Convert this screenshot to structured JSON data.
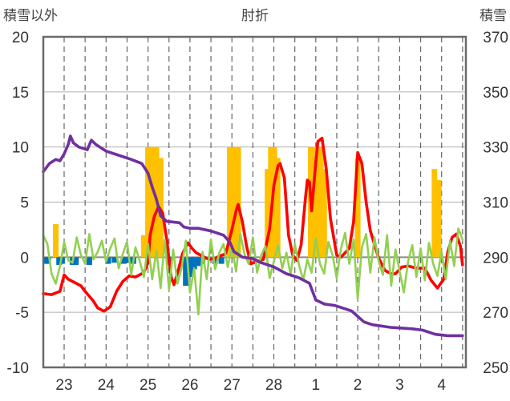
{
  "chart_data": {
    "type": "line",
    "title": "肘折",
    "ylabel_left": "積雪以外",
    "ylabel_right": "積雪",
    "categories": [
      "23",
      "24",
      "25",
      "26",
      "27",
      "28",
      "1",
      "2",
      "3",
      "4"
    ],
    "y_left": {
      "lim": [
        -10,
        20
      ],
      "ticks": [
        "20",
        "15",
        "10",
        "5",
        "0",
        "-5",
        "-10"
      ]
    },
    "y_right": {
      "lim": [
        250,
        370
      ],
      "ticks": [
        "370",
        "350",
        "330",
        "310",
        "290",
        "270",
        "250"
      ]
    },
    "grid": true,
    "series": [
      {
        "axis": "left",
        "kind": "line",
        "color": "#ff0000",
        "points": [
          [
            -0.5,
            -3.3
          ],
          [
            -0.3,
            -3.4
          ],
          [
            -0.1,
            -3.1
          ],
          [
            0.0,
            -1.6
          ],
          [
            0.1,
            -2.0
          ],
          [
            0.2,
            -2.2
          ],
          [
            0.4,
            -2.6
          ],
          [
            0.5,
            -3.1
          ],
          [
            0.7,
            -4.0
          ],
          [
            0.8,
            -4.6
          ],
          [
            0.95,
            -4.9
          ],
          [
            1.1,
            -4.5
          ],
          [
            1.25,
            -3.1
          ],
          [
            1.4,
            -2.2
          ],
          [
            1.55,
            -1.7
          ],
          [
            1.7,
            -1.8
          ],
          [
            1.9,
            -1.4
          ],
          [
            2.0,
            -0.5
          ],
          [
            2.05,
            2.0
          ],
          [
            2.15,
            3.7
          ],
          [
            2.25,
            4.6
          ],
          [
            2.35,
            4.0
          ],
          [
            2.45,
            1.5
          ],
          [
            2.55,
            -1.8
          ],
          [
            2.62,
            -2.5
          ],
          [
            2.72,
            -1.2
          ],
          [
            2.82,
            0.3
          ],
          [
            2.95,
            1.3
          ],
          [
            3.05,
            0.8
          ],
          [
            3.15,
            0.4
          ],
          [
            3.3,
            0.1
          ],
          [
            3.45,
            -0.2
          ],
          [
            3.6,
            -0.1
          ],
          [
            3.7,
            0.1
          ],
          [
            3.85,
            0.3
          ],
          [
            4.0,
            2.5
          ],
          [
            4.1,
            4.2
          ],
          [
            4.15,
            4.8
          ],
          [
            4.25,
            3.2
          ],
          [
            4.35,
            1.0
          ],
          [
            4.45,
            -0.6
          ],
          [
            4.6,
            -0.4
          ],
          [
            4.75,
            -0.2
          ],
          [
            4.9,
            2.6
          ],
          [
            5.0,
            6.5
          ],
          [
            5.1,
            8.3
          ],
          [
            5.15,
            8.5
          ],
          [
            5.25,
            7.2
          ],
          [
            5.35,
            2.0
          ],
          [
            5.45,
            0.2
          ],
          [
            5.55,
            -0.3
          ],
          [
            5.65,
            1.1
          ],
          [
            5.75,
            5.2
          ],
          [
            5.8,
            7.0
          ],
          [
            5.85,
            6.8
          ],
          [
            5.9,
            4.2
          ],
          [
            6.0,
            8.6
          ],
          [
            6.05,
            10.5
          ],
          [
            6.15,
            10.8
          ],
          [
            6.25,
            8.0
          ],
          [
            6.35,
            3.5
          ],
          [
            6.5,
            0.2
          ],
          [
            6.6,
            0.0
          ],
          [
            6.8,
            0.8
          ],
          [
            6.9,
            3.2
          ],
          [
            7.0,
            9.5
          ],
          [
            7.1,
            8.5
          ],
          [
            7.2,
            5.0
          ],
          [
            7.3,
            2.4
          ],
          [
            7.5,
            -0.1
          ],
          [
            7.65,
            -1.2
          ],
          [
            7.8,
            -1.5
          ],
          [
            7.9,
            -1.5
          ],
          [
            8.05,
            -0.9
          ],
          [
            8.2,
            -0.8
          ],
          [
            8.4,
            -1.0
          ],
          [
            8.6,
            -1.0
          ],
          [
            8.75,
            -2.1
          ],
          [
            8.9,
            -2.8
          ],
          [
            9.05,
            -2.0
          ],
          [
            9.15,
            0.5
          ],
          [
            9.25,
            1.8
          ],
          [
            9.35,
            2.1
          ],
          [
            9.45,
            1.0
          ],
          [
            9.5,
            -0.7
          ]
        ]
      },
      {
        "axis": "left",
        "kind": "line",
        "color": "#92d050",
        "points": [
          [
            -0.5,
            2.0
          ],
          [
            -0.4,
            1.2
          ],
          [
            -0.3,
            -1.5
          ],
          [
            -0.2,
            -2.4
          ],
          [
            -0.1,
            -0.8
          ],
          [
            0.0,
            1.4
          ],
          [
            0.1,
            -0.3
          ],
          [
            0.2,
            -0.5
          ],
          [
            0.3,
            1.8
          ],
          [
            0.4,
            0.2
          ],
          [
            0.5,
            -0.6
          ],
          [
            0.6,
            2.1
          ],
          [
            0.7,
            -0.2
          ],
          [
            0.8,
            0.5
          ],
          [
            0.9,
            1.5
          ],
          [
            1.0,
            -0.4
          ],
          [
            1.1,
            0.8
          ],
          [
            1.2,
            1.7
          ],
          [
            1.3,
            -1.0
          ],
          [
            1.4,
            0.3
          ],
          [
            1.5,
            1.4
          ],
          [
            1.6,
            -1.6
          ],
          [
            1.7,
            0.9
          ],
          [
            1.8,
            -0.3
          ],
          [
            1.9,
            -1.8
          ],
          [
            2.0,
            1.2
          ],
          [
            2.1,
            -2.0
          ],
          [
            2.2,
            0.6
          ],
          [
            2.3,
            -2.8
          ],
          [
            2.4,
            1.6
          ],
          [
            2.5,
            -3.0
          ],
          [
            2.6,
            0.7
          ],
          [
            2.7,
            -2.4
          ],
          [
            2.8,
            -1.0
          ],
          [
            2.9,
            1.5
          ],
          [
            3.0,
            -3.2
          ],
          [
            3.1,
            -1.0
          ],
          [
            3.2,
            -5.2
          ],
          [
            3.3,
            0.5
          ],
          [
            3.4,
            -2.0
          ],
          [
            3.5,
            1.6
          ],
          [
            3.6,
            -1.1
          ],
          [
            3.7,
            0.4
          ],
          [
            3.8,
            1.2
          ],
          [
            3.9,
            -0.9
          ],
          [
            4.0,
            0.9
          ],
          [
            4.1,
            -1.3
          ],
          [
            4.2,
            2.1
          ],
          [
            4.3,
            0.3
          ],
          [
            4.4,
            -0.6
          ],
          [
            4.5,
            1.8
          ],
          [
            4.6,
            -1.4
          ],
          [
            4.7,
            0.2
          ],
          [
            4.8,
            1.0
          ],
          [
            4.9,
            -1.9
          ],
          [
            5.0,
            -0.4
          ],
          [
            5.1,
            1.1
          ],
          [
            5.2,
            -1.0
          ],
          [
            5.3,
            0.4
          ],
          [
            5.4,
            -1.6
          ],
          [
            5.5,
            1.2
          ],
          [
            5.6,
            -0.7
          ],
          [
            5.7,
            -2.1
          ],
          [
            5.8,
            -0.2
          ],
          [
            5.9,
            -1.4
          ],
          [
            6.0,
            1.7
          ],
          [
            6.1,
            -0.6
          ],
          [
            6.2,
            -1.5
          ],
          [
            6.3,
            1.4
          ],
          [
            6.4,
            0.2
          ],
          [
            6.5,
            -1.9
          ],
          [
            6.6,
            0.8
          ],
          [
            6.7,
            2.2
          ],
          [
            6.8,
            -0.6
          ],
          [
            6.9,
            1.6
          ],
          [
            7.0,
            -3.8
          ],
          [
            7.1,
            0.9
          ],
          [
            7.2,
            2.1
          ],
          [
            7.3,
            -1.4
          ],
          [
            7.4,
            1.8
          ],
          [
            7.5,
            -0.4
          ],
          [
            7.6,
            -1.6
          ],
          [
            7.7,
            2.0
          ],
          [
            7.8,
            -2.6
          ],
          [
            7.9,
            0.7
          ],
          [
            8.0,
            -1.3
          ],
          [
            8.1,
            -3.2
          ],
          [
            8.2,
            -0.4
          ],
          [
            8.3,
            1.1
          ],
          [
            8.4,
            -1.8
          ],
          [
            8.5,
            0.8
          ],
          [
            8.6,
            -2.1
          ],
          [
            8.7,
            1.3
          ],
          [
            8.8,
            -0.6
          ],
          [
            8.9,
            -1.7
          ],
          [
            9.0,
            0.5
          ],
          [
            9.1,
            -2.0
          ],
          [
            9.2,
            1.5
          ],
          [
            9.3,
            -0.8
          ],
          [
            9.4,
            2.6
          ],
          [
            9.5,
            1.6
          ]
        ]
      },
      {
        "axis": "left",
        "kind": "bar",
        "color": "#ffc000",
        "points": [
          [
            -0.2,
            3.0
          ],
          [
            1.9,
            2.0
          ],
          [
            2.0,
            10.0
          ],
          [
            2.1,
            10.0
          ],
          [
            2.2,
            10.0
          ],
          [
            2.3,
            9.0
          ],
          [
            3.95,
            10.0
          ],
          [
            4.05,
            10.0
          ],
          [
            4.15,
            10.0
          ],
          [
            4.85,
            8.0
          ],
          [
            4.93,
            10.0
          ],
          [
            5.01,
            10.0
          ],
          [
            5.09,
            9.0
          ],
          [
            5.88,
            10.0
          ],
          [
            5.96,
            10.0
          ],
          [
            6.04,
            10.0
          ],
          [
            6.12,
            10.0
          ],
          [
            6.2,
            8.0
          ],
          [
            7.0,
            9.0
          ],
          [
            8.83,
            8.0
          ],
          [
            8.93,
            7.0
          ]
        ]
      },
      {
        "axis": "left",
        "kind": "bar",
        "color": "#0070c0",
        "points": [
          [
            -0.45,
            -0.6
          ],
          [
            -0.38,
            -0.6
          ],
          [
            -0.12,
            -0.7
          ],
          [
            -0.05,
            -0.6
          ],
          [
            0.2,
            -0.7
          ],
          [
            0.28,
            -0.7
          ],
          [
            0.6,
            -0.7
          ],
          [
            1.05,
            -0.6
          ],
          [
            1.2,
            -0.5
          ],
          [
            1.42,
            -0.6
          ],
          [
            1.52,
            -0.5
          ],
          [
            1.65,
            -0.6
          ],
          [
            2.5,
            -0.7
          ],
          [
            2.9,
            -2.6
          ],
          [
            3.02,
            -1.8
          ],
          [
            3.1,
            -1.1
          ],
          [
            3.22,
            -0.8
          ],
          [
            3.3,
            -0.6
          ],
          [
            3.6,
            -0.6
          ],
          [
            3.75,
            -0.6
          ]
        ]
      },
      {
        "axis": "right",
        "kind": "line",
        "color": "#7030a0",
        "points": [
          [
            -0.5,
            321.0
          ],
          [
            -0.35,
            324.0
          ],
          [
            -0.2,
            325.5
          ],
          [
            -0.1,
            325.0
          ],
          [
            0.0,
            327.5
          ],
          [
            0.1,
            331.0
          ],
          [
            0.15,
            334.0
          ],
          [
            0.22,
            331.5
          ],
          [
            0.35,
            330.0
          ],
          [
            0.55,
            329.0
          ],
          [
            0.65,
            332.5
          ],
          [
            0.75,
            331.0
          ],
          [
            1.0,
            328.5
          ],
          [
            1.3,
            327.0
          ],
          [
            1.6,
            325.5
          ],
          [
            1.85,
            324.0
          ],
          [
            2.0,
            320.5
          ],
          [
            2.1,
            315.5
          ],
          [
            2.2,
            311.0
          ],
          [
            2.3,
            305.0
          ],
          [
            2.45,
            303.0
          ],
          [
            2.75,
            302.5
          ],
          [
            2.85,
            301.0
          ],
          [
            3.0,
            300.5
          ],
          [
            3.2,
            300.5
          ],
          [
            3.5,
            299.5
          ],
          [
            3.8,
            298.0
          ],
          [
            3.95,
            295.5
          ],
          [
            4.05,
            292.0
          ],
          [
            4.25,
            290.0
          ],
          [
            4.5,
            289.5
          ],
          [
            4.7,
            288.0
          ],
          [
            5.0,
            286.5
          ],
          [
            5.3,
            284.0
          ],
          [
            5.6,
            282.5
          ],
          [
            5.85,
            280.5
          ],
          [
            6.0,
            274.5
          ],
          [
            6.2,
            273.0
          ],
          [
            6.45,
            272.5
          ],
          [
            6.85,
            270.5
          ],
          [
            7.15,
            266.5
          ],
          [
            7.35,
            265.5
          ],
          [
            7.8,
            264.5
          ],
          [
            8.3,
            264.0
          ],
          [
            8.55,
            263.5
          ],
          [
            8.85,
            262.0
          ],
          [
            9.15,
            261.5
          ],
          [
            9.5,
            261.5
          ]
        ]
      }
    ]
  }
}
